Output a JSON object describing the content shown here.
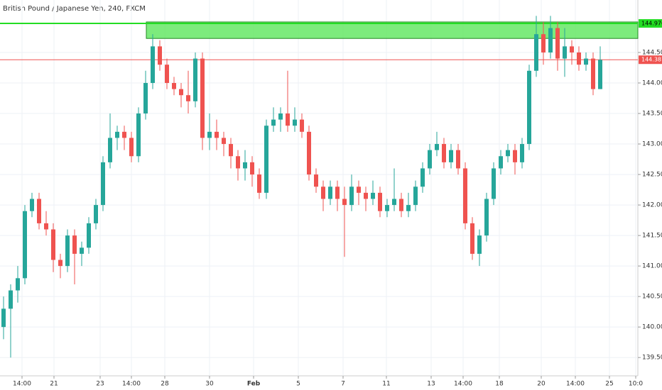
{
  "chart_data": {
    "type": "candlestick",
    "title": "British Pound / Japanese Yen, 240, FXCM",
    "up_color": "#26a69a",
    "down_color": "#ef5350",
    "grid": true,
    "ylim": [
      139.2,
      145.36
    ],
    "xlim": [
      -0.5,
      89.3
    ],
    "yticks": [
      {
        "value": 139.5,
        "label": "139.500"
      },
      {
        "value": 140,
        "label": "140.000"
      },
      {
        "value": 140.5,
        "label": "140.500"
      },
      {
        "value": 141,
        "label": "141.000"
      },
      {
        "value": 141.5,
        "label": "141.500"
      },
      {
        "value": 142,
        "label": "142.000"
      },
      {
        "value": 142.5,
        "label": "142.500"
      },
      {
        "value": 143,
        "label": "143.000"
      },
      {
        "value": 143.5,
        "label": "143.500"
      },
      {
        "value": 144,
        "label": "144.000"
      },
      {
        "value": 144.5,
        "label": "144.500"
      }
    ],
    "xticks": [
      {
        "value": 2.6,
        "label": "14:00"
      },
      {
        "value": 7.1,
        "label": "21"
      },
      {
        "value": 13.6,
        "label": "23"
      },
      {
        "value": 18.0,
        "label": "14:00"
      },
      {
        "value": 22.7,
        "label": "28"
      },
      {
        "value": 29.0,
        "label": "30"
      },
      {
        "value": 35.2,
        "label": "Feb"
      },
      {
        "value": 41.5,
        "label": "5"
      },
      {
        "value": 47.8,
        "label": "7"
      },
      {
        "value": 53.9,
        "label": "11"
      },
      {
        "value": 60.2,
        "label": "13"
      },
      {
        "value": 64.7,
        "label": "14:00"
      },
      {
        "value": 69.8,
        "label": "18"
      },
      {
        "value": 75.7,
        "label": "20"
      },
      {
        "value": 80.5,
        "label": "14:00"
      },
      {
        "value": 85.3,
        "label": "25"
      },
      {
        "value": 89.0,
        "label": "10:0"
      }
    ],
    "zone": {
      "top": 145.0,
      "bottom": 144.73,
      "start": 20.1,
      "color": "#66e866"
    },
    "levels": [
      {
        "value": 144.976,
        "label": "144.976",
        "color": "#22dd22"
      },
      {
        "value": 144.381,
        "label": "144.381",
        "color": "#ef5350"
      }
    ],
    "open": [
      140.0,
      140.3,
      140.6,
      140.8,
      141.9,
      142.1,
      141.7,
      141.6,
      141.1,
      141.0,
      141.5,
      141.2,
      141.3,
      141.7,
      142.0,
      142.7,
      143.1,
      143.2,
      143.1,
      142.8,
      143.5,
      144.0,
      144.6,
      144.3,
      144.0,
      143.9,
      143.8,
      143.7,
      144.4,
      143.1,
      143.2,
      143.1,
      143.0,
      142.8,
      142.6,
      142.7,
      142.5,
      142.2,
      143.3,
      143.4,
      143.5,
      143.3,
      143.4,
      143.2,
      142.5,
      142.3,
      142.1,
      142.3,
      142.1,
      142.0,
      142.3,
      142.2,
      142.1,
      142.2,
      141.9,
      142.0,
      142.1,
      141.9,
      142.0,
      142.3,
      142.6,
      142.9,
      143.0,
      142.7,
      142.9,
      142.6,
      141.7,
      141.2,
      141.5,
      142.1,
      142.6,
      142.8,
      142.9,
      142.7,
      143.0,
      144.2,
      144.8,
      144.5,
      144.9,
      144.4,
      144.6,
      144.5,
      144.3,
      144.4,
      143.9
    ],
    "high": [
      140.5,
      140.7,
      141.0,
      142.0,
      142.2,
      142.2,
      141.9,
      141.7,
      141.2,
      141.6,
      141.6,
      141.4,
      141.8,
      142.1,
      142.8,
      143.5,
      143.3,
      143.3,
      143.2,
      143.6,
      144.2,
      144.8,
      144.7,
      144.4,
      144.1,
      144.0,
      144.2,
      144.5,
      144.5,
      143.5,
      143.4,
      143.2,
      143.1,
      142.9,
      142.9,
      142.8,
      142.6,
      143.4,
      143.6,
      143.6,
      144.2,
      143.6,
      143.5,
      143.3,
      142.6,
      142.4,
      142.4,
      142.4,
      142.3,
      142.5,
      142.4,
      142.3,
      142.4,
      142.3,
      142.1,
      142.6,
      142.2,
      142.2,
      142.4,
      142.7,
      143.0,
      143.2,
      143.1,
      143.0,
      143.0,
      142.7,
      141.8,
      141.6,
      142.2,
      142.7,
      142.9,
      143.0,
      143.0,
      143.1,
      144.3,
      145.1,
      145.0,
      145.1,
      145.0,
      144.9,
      144.7,
      144.6,
      144.5,
      144.5,
      144.6
    ],
    "low": [
      139.8,
      139.5,
      140.4,
      140.7,
      141.8,
      141.6,
      141.5,
      140.9,
      140.8,
      140.9,
      140.7,
      141.0,
      141.2,
      141.6,
      141.9,
      142.6,
      142.9,
      142.9,
      142.7,
      142.7,
      143.4,
      143.9,
      144.2,
      143.9,
      143.8,
      143.6,
      143.5,
      143.6,
      142.9,
      142.9,
      142.9,
      142.8,
      142.6,
      142.4,
      142.4,
      142.3,
      142.1,
      142.1,
      143.2,
      143.2,
      143.2,
      143.2,
      143.1,
      142.4,
      142.2,
      141.9,
      142.0,
      141.9,
      141.15,
      141.9,
      142.0,
      141.9,
      142.0,
      141.8,
      141.8,
      141.9,
      141.8,
      141.8,
      141.9,
      142.2,
      142.5,
      142.8,
      142.6,
      142.6,
      142.5,
      141.6,
      141.1,
      141.0,
      141.4,
      142.0,
      142.5,
      142.7,
      142.5,
      142.6,
      142.9,
      144.1,
      144.3,
      144.4,
      144.2,
      144.1,
      144.3,
      144.2,
      144.2,
      143.8,
      143.9
    ],
    "close": [
      140.3,
      140.6,
      140.8,
      141.9,
      142.1,
      141.7,
      141.6,
      141.1,
      141.0,
      141.5,
      141.2,
      141.3,
      141.7,
      142.0,
      142.7,
      143.1,
      143.2,
      143.1,
      142.8,
      143.5,
      144.0,
      144.6,
      144.3,
      144.0,
      143.9,
      143.8,
      143.7,
      144.4,
      143.1,
      143.2,
      143.1,
      143.0,
      142.8,
      142.6,
      142.7,
      142.5,
      142.2,
      143.3,
      143.4,
      143.5,
      143.3,
      143.4,
      143.2,
      142.5,
      142.3,
      142.1,
      142.3,
      142.1,
      142.0,
      142.3,
      142.2,
      142.1,
      142.2,
      141.9,
      142.0,
      142.1,
      141.9,
      142.0,
      142.3,
      142.6,
      142.9,
      143.0,
      142.7,
      142.9,
      142.6,
      141.7,
      141.2,
      141.5,
      142.1,
      142.6,
      142.8,
      142.9,
      142.7,
      143.0,
      144.2,
      144.8,
      144.5,
      144.9,
      144.4,
      144.6,
      144.5,
      144.3,
      144.4,
      143.9,
      144.38
    ]
  }
}
